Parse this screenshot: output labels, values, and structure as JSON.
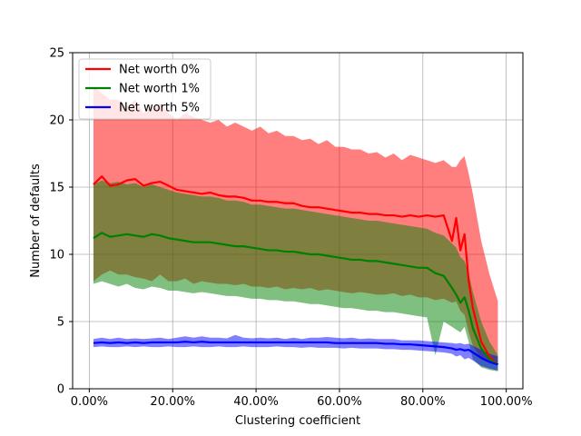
{
  "chart_data": {
    "type": "line",
    "title": "",
    "xlabel": "Clustering coefficient",
    "ylabel": "Number of defaults",
    "xlim": [
      -0.04,
      1.04
    ],
    "ylim": [
      0,
      25
    ],
    "x_ticks": [
      0.0,
      0.2,
      0.4,
      0.6,
      0.8,
      1.0
    ],
    "x_tick_labels": [
      "0.00%",
      "20.00%",
      "40.00%",
      "60.00%",
      "80.00%",
      "100.00%"
    ],
    "y_ticks": [
      0,
      5,
      10,
      15,
      20,
      25
    ],
    "y_tick_labels": [
      "0",
      "5",
      "10",
      "15",
      "20",
      "25"
    ],
    "grid": true,
    "legend_position": "top-left",
    "x": [
      0.01,
      0.03,
      0.05,
      0.07,
      0.09,
      0.11,
      0.13,
      0.15,
      0.17,
      0.19,
      0.21,
      0.23,
      0.25,
      0.27,
      0.29,
      0.31,
      0.33,
      0.35,
      0.37,
      0.39,
      0.41,
      0.43,
      0.45,
      0.47,
      0.49,
      0.51,
      0.53,
      0.55,
      0.57,
      0.59,
      0.61,
      0.63,
      0.65,
      0.67,
      0.69,
      0.71,
      0.73,
      0.75,
      0.77,
      0.79,
      0.81,
      0.83,
      0.85,
      0.87,
      0.88,
      0.89,
      0.9,
      0.91,
      0.92,
      0.94,
      0.96,
      0.98
    ],
    "series": [
      {
        "name": "Net worth 0%",
        "color": "#ff0000",
        "band_color": "#ff0000",
        "values": [
          15.2,
          15.8,
          15.1,
          15.2,
          15.5,
          15.6,
          15.1,
          15.3,
          15.4,
          15.1,
          14.8,
          14.7,
          14.6,
          14.5,
          14.6,
          14.4,
          14.3,
          14.3,
          14.2,
          14.0,
          14.0,
          13.9,
          13.9,
          13.8,
          13.8,
          13.6,
          13.5,
          13.5,
          13.4,
          13.3,
          13.2,
          13.1,
          13.1,
          13.0,
          13.0,
          12.9,
          12.9,
          12.8,
          12.9,
          12.8,
          12.9,
          12.8,
          12.9,
          11.0,
          12.7,
          10.3,
          11.5,
          8.0,
          6.0,
          3.5,
          2.4,
          1.8
        ],
        "upper": [
          22.5,
          22.0,
          21.5,
          21.5,
          21.0,
          21.5,
          20.5,
          21.0,
          21.2,
          20.5,
          20.0,
          20.5,
          20.2,
          20.0,
          19.8,
          20.0,
          19.5,
          19.8,
          19.5,
          19.2,
          19.5,
          19.0,
          19.2,
          18.8,
          18.8,
          18.5,
          18.6,
          18.2,
          18.5,
          18.0,
          18.0,
          17.8,
          17.8,
          17.5,
          17.6,
          17.2,
          17.5,
          17.0,
          17.4,
          17.2,
          17.0,
          16.8,
          17.0,
          16.5,
          16.5,
          17.0,
          17.3,
          16.0,
          14.5,
          11.0,
          8.5,
          6.5
        ],
        "lower": [
          8.0,
          8.5,
          8.8,
          8.5,
          8.5,
          8.3,
          8.2,
          8.0,
          8.5,
          8.0,
          8.0,
          8.2,
          7.8,
          8.0,
          7.9,
          7.8,
          7.8,
          7.7,
          7.8,
          7.6,
          7.6,
          7.5,
          7.6,
          7.4,
          7.5,
          7.4,
          7.5,
          7.3,
          7.4,
          7.3,
          7.2,
          7.1,
          7.2,
          7.1,
          7.0,
          7.0,
          7.1,
          6.9,
          7.0,
          6.8,
          6.8,
          6.6,
          6.7,
          6.4,
          6.5,
          5.8,
          5.5,
          4.2,
          3.2,
          2.2,
          1.9,
          1.8
        ]
      },
      {
        "name": "Net worth 1%",
        "color": "#008000",
        "band_color": "#008000",
        "values": [
          11.2,
          11.6,
          11.3,
          11.4,
          11.5,
          11.4,
          11.3,
          11.5,
          11.4,
          11.2,
          11.1,
          11.0,
          10.9,
          10.9,
          10.9,
          10.8,
          10.7,
          10.6,
          10.6,
          10.5,
          10.4,
          10.3,
          10.3,
          10.2,
          10.2,
          10.1,
          10.0,
          10.0,
          9.9,
          9.8,
          9.7,
          9.6,
          9.6,
          9.5,
          9.5,
          9.4,
          9.3,
          9.2,
          9.1,
          9.0,
          9.0,
          8.6,
          8.4,
          7.5,
          7.0,
          6.4,
          6.8,
          5.8,
          4.5,
          3.0,
          2.2,
          1.8
        ],
        "upper": [
          15.2,
          15.5,
          15.3,
          15.4,
          15.2,
          15.3,
          15.0,
          15.2,
          15.0,
          14.8,
          14.6,
          14.5,
          14.4,
          14.3,
          14.3,
          14.2,
          14.0,
          14.0,
          13.9,
          13.7,
          13.7,
          13.6,
          13.5,
          13.4,
          13.4,
          13.3,
          13.2,
          13.1,
          13.0,
          12.9,
          12.8,
          12.7,
          12.6,
          12.5,
          12.5,
          12.4,
          12.3,
          12.2,
          12.1,
          12.0,
          11.9,
          11.6,
          11.4,
          10.8,
          10.5,
          9.8,
          9.5,
          8.6,
          7.2,
          5.0,
          3.5,
          2.5
        ],
        "lower": [
          7.8,
          8.0,
          7.8,
          7.6,
          7.8,
          7.5,
          7.4,
          7.6,
          7.5,
          7.3,
          7.3,
          7.2,
          7.1,
          7.2,
          7.1,
          7.0,
          6.9,
          6.9,
          6.8,
          6.7,
          6.7,
          6.6,
          6.6,
          6.5,
          6.5,
          6.4,
          6.3,
          6.3,
          6.2,
          6.1,
          6.0,
          6.0,
          5.9,
          5.8,
          5.8,
          5.7,
          5.7,
          5.6,
          5.5,
          5.4,
          5.3,
          2.5,
          5.0,
          4.6,
          4.4,
          4.2,
          4.6,
          3.5,
          2.2,
          1.6,
          1.4,
          1.3
        ]
      },
      {
        "name": "Net worth 5%",
        "color": "#0000ff",
        "band_color": "#0000ff",
        "values": [
          3.4,
          3.45,
          3.4,
          3.45,
          3.4,
          3.45,
          3.4,
          3.45,
          3.45,
          3.45,
          3.45,
          3.5,
          3.45,
          3.5,
          3.45,
          3.45,
          3.45,
          3.45,
          3.45,
          3.45,
          3.45,
          3.45,
          3.45,
          3.45,
          3.45,
          3.45,
          3.45,
          3.45,
          3.45,
          3.4,
          3.4,
          3.4,
          3.4,
          3.4,
          3.4,
          3.35,
          3.35,
          3.3,
          3.3,
          3.25,
          3.2,
          3.15,
          3.1,
          3.0,
          2.9,
          2.95,
          2.85,
          2.9,
          2.7,
          2.3,
          2.0,
          1.8
        ],
        "upper": [
          3.7,
          3.8,
          3.7,
          3.8,
          3.7,
          3.75,
          3.7,
          3.75,
          3.8,
          3.7,
          3.8,
          3.9,
          3.8,
          3.9,
          3.8,
          3.8,
          3.75,
          4.0,
          3.8,
          3.75,
          3.8,
          3.75,
          3.8,
          3.7,
          3.8,
          3.7,
          3.8,
          3.8,
          3.85,
          3.8,
          3.75,
          3.8,
          3.7,
          3.75,
          3.7,
          3.7,
          3.7,
          3.6,
          3.6,
          3.6,
          3.55,
          3.5,
          3.45,
          3.4,
          3.35,
          3.4,
          3.3,
          3.35,
          3.2,
          2.9,
          2.6,
          2.4
        ],
        "lower": [
          3.1,
          3.15,
          3.1,
          3.1,
          3.15,
          3.1,
          3.15,
          3.1,
          3.1,
          3.15,
          3.1,
          3.1,
          3.15,
          3.1,
          3.1,
          3.15,
          3.1,
          3.1,
          3.15,
          3.1,
          3.1,
          3.1,
          3.15,
          3.1,
          3.1,
          3.05,
          3.1,
          3.05,
          3.05,
          3.05,
          3.0,
          3.05,
          3.0,
          3.0,
          3.0,
          2.95,
          2.95,
          2.9,
          2.9,
          2.85,
          2.8,
          2.75,
          2.7,
          2.6,
          2.4,
          2.5,
          2.2,
          2.3,
          2.1,
          1.7,
          1.5,
          1.35
        ]
      }
    ]
  }
}
